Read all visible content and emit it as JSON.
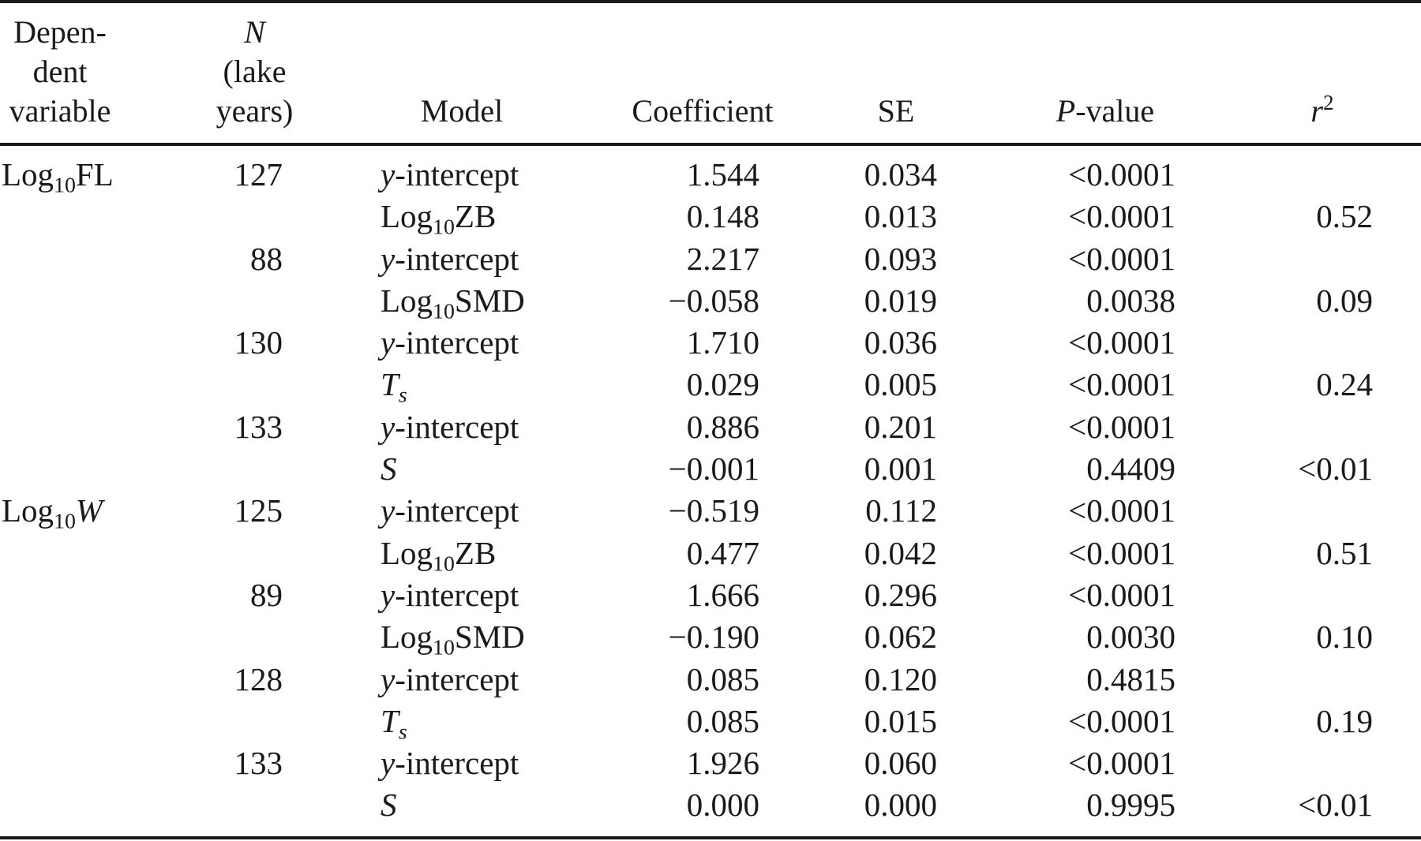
{
  "headers": {
    "dependent": [
      "Depen-",
      "dent",
      "variable"
    ],
    "n": {
      "symbol": "N",
      "line2": "(lake",
      "line3": "years)"
    },
    "model": "Model",
    "coefficient": "Coefficient",
    "se": "SE",
    "pvalue": {
      "symbol": "P",
      "rest": "-value"
    },
    "r2": {
      "base": "r",
      "sup": "2"
    }
  },
  "rows": [
    {
      "dep": "Log10FL",
      "n": "127",
      "model": "y-intercept",
      "coef": "1.544",
      "se": "0.034",
      "p": "<0.0001",
      "r2": ""
    },
    {
      "dep": "",
      "n": "",
      "model": "Log10ZB",
      "coef": "0.148",
      "se": "0.013",
      "p": "<0.0001",
      "r2": "0.52"
    },
    {
      "dep": "",
      "n": "88",
      "model": "y-intercept",
      "coef": "2.217",
      "se": "0.093",
      "p": "<0.0001",
      "r2": ""
    },
    {
      "dep": "",
      "n": "",
      "model": "Log10SMD",
      "coef": "−0.058",
      "se": "0.019",
      "p": "0.0038",
      "r2": "0.09"
    },
    {
      "dep": "",
      "n": "130",
      "model": "y-intercept",
      "coef": "1.710",
      "se": "0.036",
      "p": "<0.0001",
      "r2": ""
    },
    {
      "dep": "",
      "n": "",
      "model": "Ts",
      "coef": "0.029",
      "se": "0.005",
      "p": "<0.0001",
      "r2": "0.24"
    },
    {
      "dep": "",
      "n": "133",
      "model": "y-intercept",
      "coef": "0.886",
      "se": "0.201",
      "p": "<0.0001",
      "r2": ""
    },
    {
      "dep": "",
      "n": "",
      "model": "S",
      "coef": "−0.001",
      "se": "0.001",
      "p": "0.4409",
      "r2": "<0.01"
    },
    {
      "dep": "Log10W",
      "n": "125",
      "model": "y-intercept",
      "coef": "−0.519",
      "se": "0.112",
      "p": "<0.0001",
      "r2": ""
    },
    {
      "dep": "",
      "n": "",
      "model": "Log10ZB",
      "coef": "0.477",
      "se": "0.042",
      "p": "<0.0001",
      "r2": "0.51"
    },
    {
      "dep": "",
      "n": "89",
      "model": "y-intercept",
      "coef": "1.666",
      "se": "0.296",
      "p": "<0.0001",
      "r2": ""
    },
    {
      "dep": "",
      "n": "",
      "model": "Log10SMD",
      "coef": "−0.190",
      "se": "0.062",
      "p": "0.0030",
      "r2": "0.10"
    },
    {
      "dep": "",
      "n": "128",
      "model": "y-intercept",
      "coef": "0.085",
      "se": "0.120",
      "p": "0.4815",
      "r2": ""
    },
    {
      "dep": "",
      "n": "",
      "model": "Ts",
      "coef": "0.085",
      "se": "0.015",
      "p": "<0.0001",
      "r2": "0.19"
    },
    {
      "dep": "",
      "n": "133",
      "model": "y-intercept",
      "coef": "1.926",
      "se": "0.060",
      "p": "<0.0001",
      "r2": ""
    },
    {
      "dep": "",
      "n": "",
      "model": "S",
      "coef": "0.000",
      "se": "0.000",
      "p": "0.9995",
      "r2": "<0.01"
    }
  ]
}
